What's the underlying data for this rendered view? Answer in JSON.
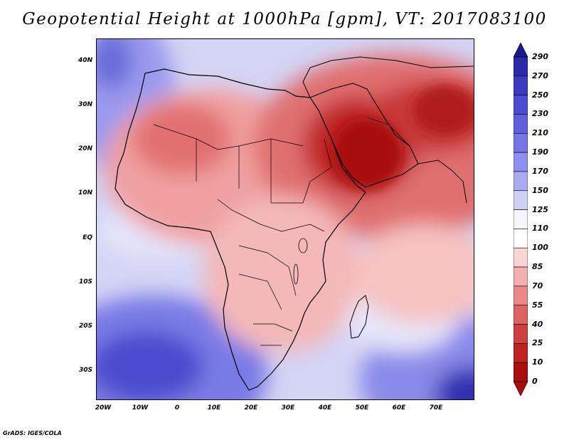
{
  "title": "Geopotential Height at 1000hPa [gpm], VT: 2017083100",
  "footer": "GrADS: IGES/COLA",
  "map": {
    "lon_ticks": [
      "20W",
      "10W",
      "0",
      "10E",
      "20E",
      "30E",
      "40E",
      "50E",
      "60E",
      "70E"
    ],
    "lon_values": [
      -20,
      -10,
      0,
      10,
      20,
      30,
      40,
      50,
      60,
      70
    ],
    "lat_ticks": [
      "40N",
      "30N",
      "20N",
      "10N",
      "EQ",
      "10S",
      "20S",
      "30S"
    ],
    "lat_values": [
      40,
      30,
      20,
      10,
      0,
      -10,
      -20,
      -30
    ],
    "lon_range": [
      -22,
      80
    ],
    "lat_range": [
      -37,
      45
    ],
    "ocean_color": "#d6d6f6",
    "land_color": "#ee9a9a",
    "coast_color": "#000000"
  },
  "colorbar": {
    "levels": [
      "290",
      "270",
      "250",
      "230",
      "210",
      "190",
      "170",
      "150",
      "125",
      "110",
      "100",
      "85",
      "70",
      "55",
      "40",
      "25",
      "10",
      "0"
    ],
    "colors": [
      "#1a1a8a",
      "#2a2aa8",
      "#3b3bc0",
      "#4c4cd0",
      "#6060dc",
      "#7676e4",
      "#8e8eec",
      "#ababf2",
      "#cfcff7",
      "#f5f5fb",
      "#ffffff",
      "#fad4d4",
      "#f4b0b0",
      "#ea8888",
      "#de6262",
      "#ce4040",
      "#bc2424",
      "#a80e0e",
      "#920000"
    ],
    "top_color": "#1a1a8a",
    "bottom_color": "#a80e0e"
  }
}
